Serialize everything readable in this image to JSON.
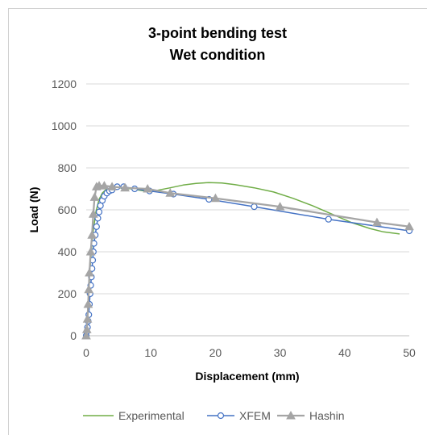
{
  "chart_data": {
    "type": "line",
    "title_line1": "3-point bending test",
    "title_line2": "Wet condition",
    "xlabel": "Displacement (mm)",
    "ylabel": "Load (N)",
    "xlim": [
      0,
      50
    ],
    "ylim": [
      0,
      1200
    ],
    "x_ticks": [
      "0",
      "10",
      "20",
      "30",
      "40",
      "50"
    ],
    "y_ticks": [
      "0",
      "200",
      "400",
      "600",
      "800",
      "1000",
      "1200"
    ],
    "grid": "horizontal",
    "legend_position": "bottom",
    "colors": {
      "experimental": "#70ad47",
      "xfem": "#4472c4",
      "hashin": "#a5a5a5",
      "grid": "#d9d9d9"
    },
    "series": [
      {
        "name": "Experimental",
        "marker": "none",
        "x": [
          0,
          0.3,
          0.6,
          1.0,
          1.5,
          2.0,
          2.5,
          3.0,
          4.0,
          5.0,
          7.0,
          9.0,
          11.0,
          13.0,
          15.0,
          17.0,
          19.0,
          21.0,
          23.0,
          26.0,
          29.0,
          32.0,
          35.0,
          38.0,
          41.0,
          44.0,
          46.0,
          48.5
        ],
        "y": [
          0,
          150,
          320,
          480,
          590,
          650,
          680,
          695,
          705,
          705,
          700,
          690,
          693,
          705,
          718,
          726,
          730,
          728,
          720,
          705,
          685,
          655,
          620,
          580,
          540,
          510,
          495,
          485
        ]
      },
      {
        "name": "XFEM",
        "marker": "circle",
        "x": [
          0,
          0.1,
          0.2,
          0.3,
          0.4,
          0.5,
          0.6,
          0.7,
          0.8,
          0.9,
          1.0,
          1.1,
          1.2,
          1.4,
          1.6,
          1.8,
          2.0,
          2.2,
          2.5,
          2.8,
          3.2,
          3.6,
          4.0,
          4.8,
          5.8,
          7.5,
          9.8,
          13.5,
          19.0,
          26.0,
          37.5,
          50.0
        ],
        "y": [
          0,
          20,
          40,
          70,
          100,
          150,
          200,
          240,
          280,
          320,
          360,
          400,
          440,
          480,
          520,
          560,
          590,
          620,
          645,
          665,
          680,
          690,
          695,
          710,
          710,
          700,
          690,
          675,
          650,
          615,
          555,
          500
        ]
      },
      {
        "name": "Hashin",
        "marker": "triangle",
        "x": [
          0,
          0.1,
          0.2,
          0.3,
          0.4,
          0.5,
          0.7,
          0.9,
          1.1,
          1.3,
          1.6,
          2.0,
          2.8,
          4.0,
          6.0,
          9.5,
          13.0,
          20.0,
          30.0,
          45.0,
          50.0
        ],
        "y": [
          0,
          30,
          80,
          150,
          220,
          300,
          400,
          480,
          580,
          660,
          710,
          715,
          715,
          710,
          705,
          700,
          680,
          655,
          615,
          540,
          520
        ]
      }
    ]
  }
}
